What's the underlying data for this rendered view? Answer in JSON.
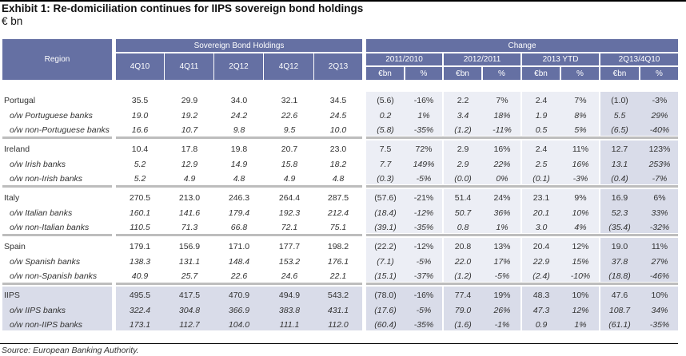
{
  "title": "Exhibit 1: Re-domiciliation continues for IIPS sovereign bond holdings",
  "subtitle": "€ bn",
  "header": {
    "region": "Region",
    "holdings": "Sovereign Bond Holdings",
    "holdings_cols": [
      "4Q10",
      "4Q11",
      "2Q12",
      "4Q12",
      "2Q13"
    ],
    "change": "Change",
    "change_groups": [
      "2011/2010",
      "2012/2011",
      "2013 YTD",
      "2Q13/4Q10"
    ],
    "change_sub": [
      "€bn",
      "%"
    ]
  },
  "colors": {
    "header_bg": "#6570a3",
    "panel_bg": "#eceef5",
    "panel_dark": "#d9dce9",
    "separator": "#bdbdbd"
  },
  "sections": [
    {
      "rows": [
        {
          "label": "Portugal",
          "values": [
            "35.5",
            "29.9",
            "34.0",
            "32.1",
            "34.5"
          ],
          "change": [
            "(5.6)",
            "-16%",
            "2.2",
            "7%",
            "2.4",
            "7%",
            "(1.0)",
            "-3%"
          ]
        },
        {
          "label": "o/w Portuguese banks",
          "values": [
            "19.0",
            "19.2",
            "24.2",
            "22.6",
            "24.5"
          ],
          "change": [
            "0.2",
            "1%",
            "3.4",
            "18%",
            "1.9",
            "8%",
            "5.5",
            "29%"
          ]
        },
        {
          "label": "o/w non-Portuguese banks",
          "values": [
            "16.6",
            "10.7",
            "9.8",
            "9.5",
            "10.0"
          ],
          "change": [
            "(5.8)",
            "-35%",
            "(1.2)",
            "-11%",
            "0.5",
            "5%",
            "(6.5)",
            "-40%"
          ]
        }
      ]
    },
    {
      "rows": [
        {
          "label": "Ireland",
          "values": [
            "10.4",
            "17.8",
            "19.8",
            "20.7",
            "23.0"
          ],
          "change": [
            "7.5",
            "72%",
            "2.9",
            "16%",
            "2.4",
            "11%",
            "12.7",
            "123%"
          ]
        },
        {
          "label": "o/w Irish banks",
          "values": [
            "5.2",
            "12.9",
            "14.9",
            "15.8",
            "18.2"
          ],
          "change": [
            "7.7",
            "149%",
            "2.9",
            "22%",
            "2.5",
            "16%",
            "13.1",
            "253%"
          ]
        },
        {
          "label": "o/w non-Irish banks",
          "values": [
            "5.2",
            "4.9",
            "4.8",
            "4.9",
            "4.8"
          ],
          "change": [
            "(0.3)",
            "-5%",
            "(0.0)",
            "0%",
            "(0.1)",
            "-3%",
            "(0.4)",
            "-7%"
          ]
        }
      ]
    },
    {
      "rows": [
        {
          "label": "Italy",
          "values": [
            "270.5",
            "213.0",
            "246.3",
            "264.4",
            "287.5"
          ],
          "change": [
            "(57.6)",
            "-21%",
            "51.4",
            "24%",
            "23.1",
            "9%",
            "16.9",
            "6%"
          ]
        },
        {
          "label": "o/w Italian banks",
          "values": [
            "160.1",
            "141.6",
            "179.4",
            "192.3",
            "212.4"
          ],
          "change": [
            "(18.4)",
            "-12%",
            "50.7",
            "36%",
            "20.1",
            "10%",
            "52.3",
            "33%"
          ]
        },
        {
          "label": "o/w non-Italian banks",
          "values": [
            "110.5",
            "71.3",
            "66.8",
            "72.1",
            "75.1"
          ],
          "change": [
            "(39.1)",
            "-35%",
            "0.8",
            "1%",
            "3.0",
            "4%",
            "(35.4)",
            "-32%"
          ]
        }
      ]
    },
    {
      "rows": [
        {
          "label": "Spain",
          "values": [
            "179.1",
            "156.9",
            "171.0",
            "177.7",
            "198.2"
          ],
          "change": [
            "(22.2)",
            "-12%",
            "20.8",
            "13%",
            "20.4",
            "12%",
            "19.0",
            "11%"
          ]
        },
        {
          "label": "o/w Spanish banks",
          "values": [
            "138.3",
            "131.1",
            "148.4",
            "153.2",
            "176.1"
          ],
          "change": [
            "(7.1)",
            "-5%",
            "22.0",
            "17%",
            "22.9",
            "15%",
            "37.8",
            "27%"
          ]
        },
        {
          "label": "o/w non-Spanish banks",
          "values": [
            "40.9",
            "25.7",
            "22.6",
            "24.6",
            "22.1"
          ],
          "change": [
            "(15.1)",
            "-37%",
            "(1.2)",
            "-5%",
            "(2.4)",
            "-10%",
            "(18.8)",
            "-46%"
          ]
        }
      ]
    },
    {
      "highlight": true,
      "rows": [
        {
          "label": "IIPS",
          "values": [
            "495.5",
            "417.5",
            "470.9",
            "494.9",
            "543.2"
          ],
          "change": [
            "(78.0)",
            "-16%",
            "77.4",
            "19%",
            "48.3",
            "10%",
            "47.6",
            "10%"
          ]
        },
        {
          "label": "o/w IIPS banks",
          "values": [
            "322.4",
            "304.8",
            "366.9",
            "383.8",
            "431.1"
          ],
          "change": [
            "(17.6)",
            "-5%",
            "79.0",
            "26%",
            "47.3",
            "12%",
            "108.7",
            "34%"
          ]
        },
        {
          "label": "o/w non-IIPS banks",
          "values": [
            "173.1",
            "112.7",
            "104.0",
            "111.1",
            "112.0"
          ],
          "change": [
            "(60.4)",
            "-35%",
            "(1.6)",
            "-1%",
            "0.9",
            "1%",
            "(61.1)",
            "-35%"
          ]
        }
      ]
    }
  ],
  "source": "Source: European Banking Authority."
}
